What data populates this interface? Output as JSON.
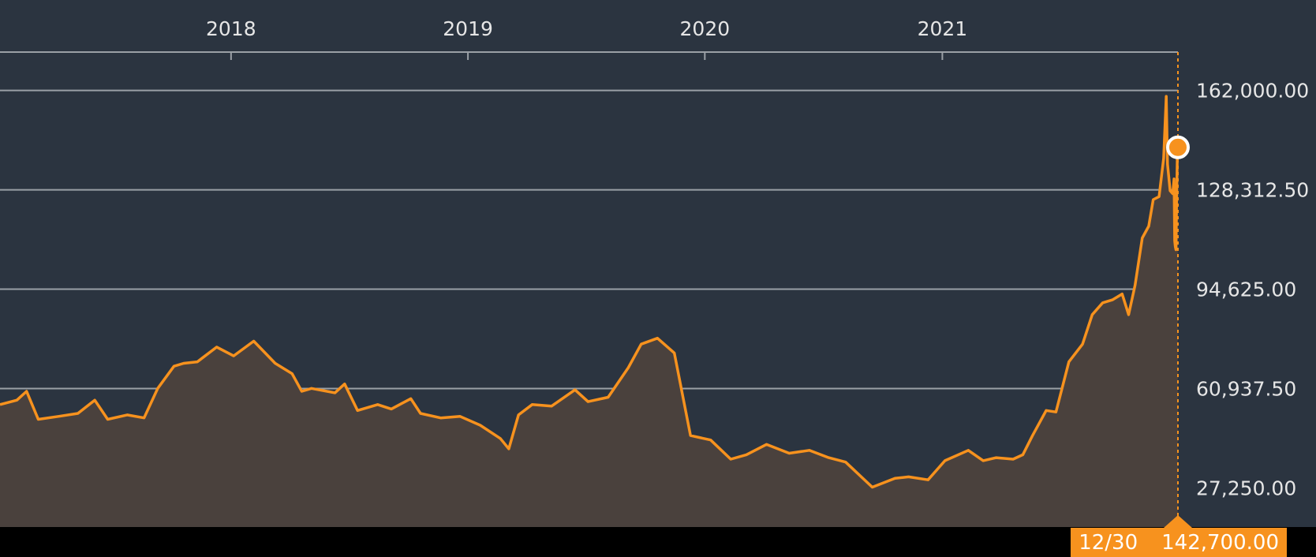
{
  "chart_data": {
    "type": "area",
    "title": "",
    "xlabel": "",
    "ylabel": "",
    "x_ticks": [
      "2018",
      "2019",
      "2020",
      "2021"
    ],
    "y_ticks": [
      "162,000.00",
      "128,312.50",
      "94,625.00",
      "60,937.50",
      "27,250.00"
    ],
    "y_tick_values": [
      162000,
      128312.5,
      94625,
      60937.5,
      27250
    ],
    "ylim": [
      14000,
      175000
    ],
    "xlim": [
      "2017-01-10",
      "2021-12-30"
    ],
    "grid": true,
    "colors": {
      "line": "#f7921e",
      "area": "#4a413d",
      "background": "#2b3440",
      "grid": "#9aa0a6",
      "text": "#e6e6e6"
    },
    "series": [
      {
        "values": [
          [
            "2017-01-10",
            55500
          ],
          [
            "2017-02-05",
            57000
          ],
          [
            "2017-02-20",
            60000
          ],
          [
            "2017-03-10",
            50500
          ],
          [
            "2017-04-10",
            51500
          ],
          [
            "2017-05-10",
            52500
          ],
          [
            "2017-06-05",
            57000
          ],
          [
            "2017-06-25",
            50500
          ],
          [
            "2017-07-25",
            52000
          ],
          [
            "2017-08-20",
            51000
          ],
          [
            "2017-09-10",
            61000
          ],
          [
            "2017-10-05",
            68500
          ],
          [
            "2017-10-20",
            69500
          ],
          [
            "2017-11-10",
            70000
          ],
          [
            "2017-12-10",
            75000
          ],
          [
            "2018-01-05",
            72000
          ],
          [
            "2018-02-05",
            77000
          ],
          [
            "2018-03-10",
            69500
          ],
          [
            "2018-04-05",
            66000
          ],
          [
            "2018-04-20",
            60000
          ],
          [
            "2018-05-05",
            61000
          ],
          [
            "2018-06-10",
            59500
          ],
          [
            "2018-06-25",
            62500
          ],
          [
            "2018-07-15",
            53500
          ],
          [
            "2018-08-15",
            55500
          ],
          [
            "2018-09-05",
            54000
          ],
          [
            "2018-10-05",
            57500
          ],
          [
            "2018-10-20",
            52500
          ],
          [
            "2018-11-20",
            51000
          ],
          [
            "2018-12-20",
            51500
          ],
          [
            "2019-01-20",
            48500
          ],
          [
            "2019-02-20",
            44000
          ],
          [
            "2019-03-05",
            40500
          ],
          [
            "2019-03-20",
            52000
          ],
          [
            "2019-04-10",
            55500
          ],
          [
            "2019-05-10",
            55000
          ],
          [
            "2019-06-15",
            60500
          ],
          [
            "2019-07-05",
            56500
          ],
          [
            "2019-08-05",
            58000
          ],
          [
            "2019-09-05",
            68000
          ],
          [
            "2019-09-25",
            76000
          ],
          [
            "2019-10-20",
            78000
          ],
          [
            "2019-11-15",
            73000
          ],
          [
            "2019-12-10",
            45000
          ],
          [
            "2020-01-10",
            43500
          ],
          [
            "2020-02-10",
            37000
          ],
          [
            "2020-03-05",
            38500
          ],
          [
            "2020-04-05",
            42000
          ],
          [
            "2020-05-10",
            39000
          ],
          [
            "2020-06-10",
            40000
          ],
          [
            "2020-07-10",
            37500
          ],
          [
            "2020-08-05",
            36000
          ],
          [
            "2020-09-15",
            27500
          ],
          [
            "2020-10-20",
            30500
          ],
          [
            "2020-11-10",
            31000
          ],
          [
            "2020-12-10",
            30000
          ],
          [
            "2021-01-05",
            36500
          ],
          [
            "2021-02-10",
            40000
          ],
          [
            "2021-03-05",
            36500
          ],
          [
            "2021-03-25",
            37500
          ],
          [
            "2021-04-20",
            37000
          ],
          [
            "2021-05-05",
            38500
          ],
          [
            "2021-05-20",
            45000
          ],
          [
            "2021-06-10",
            53500
          ],
          [
            "2021-06-25",
            53000
          ],
          [
            "2021-07-15",
            70000
          ],
          [
            "2021-08-05",
            76000
          ],
          [
            "2021-08-20",
            86000
          ],
          [
            "2021-09-05",
            90000
          ],
          [
            "2021-09-20",
            91000
          ],
          [
            "2021-10-05",
            93000
          ],
          [
            "2021-10-15",
            86000
          ],
          [
            "2021-10-25",
            96000
          ],
          [
            "2021-11-05",
            112000
          ],
          [
            "2021-11-15",
            116000
          ],
          [
            "2021-11-22",
            125000
          ],
          [
            "2021-12-01",
            126000
          ],
          [
            "2021-12-08",
            139000
          ],
          [
            "2021-12-12",
            160000
          ],
          [
            "2021-12-14",
            137000
          ],
          [
            "2021-12-18",
            128000
          ],
          [
            "2021-12-22",
            127000
          ],
          [
            "2021-12-24",
            132000
          ],
          [
            "2021-12-25",
            111000
          ],
          [
            "2021-12-26",
            109000
          ],
          [
            "2021-12-27",
            108000
          ],
          [
            "2021-12-28",
            126000
          ],
          [
            "2021-12-29",
            139000
          ],
          [
            "2021-12-30",
            142700
          ]
        ]
      }
    ],
    "current": {
      "date": "12/30",
      "value": "142,700.00",
      "value_num": 142700
    }
  }
}
